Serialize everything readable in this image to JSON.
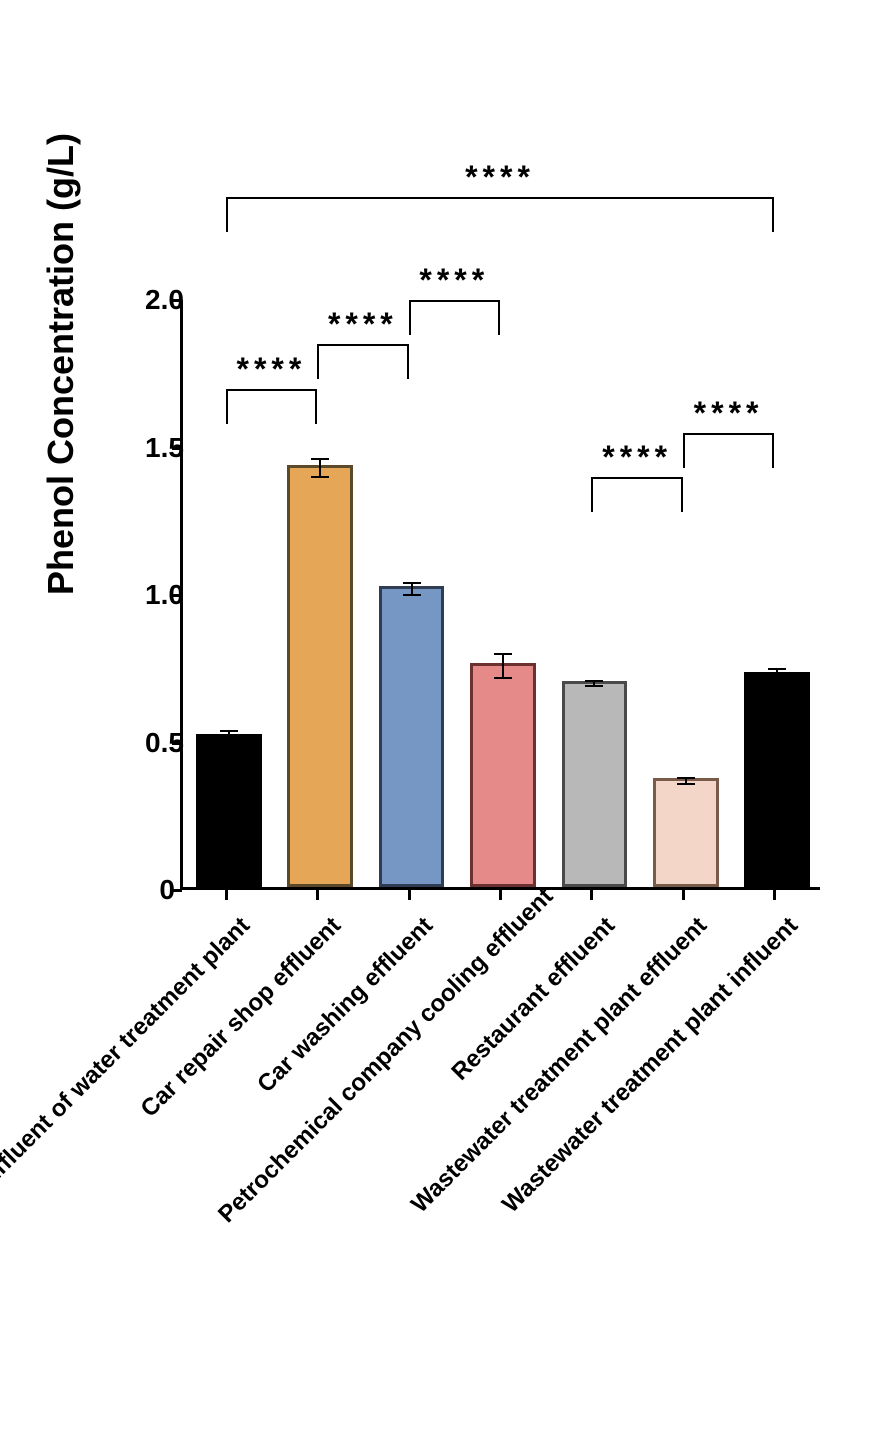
{
  "chart": {
    "type": "bar",
    "ylabel": "Phenol Concentration (g/L)",
    "ylabel_fontsize": 36,
    "ylim": [
      0,
      2.0
    ],
    "ytick_step": 0.5,
    "yticks": [
      "0",
      "0.5",
      "1.0",
      "1.5",
      "2.0"
    ],
    "tick_fontsize": 28,
    "xlabel_fontsize": 24,
    "background_color": "#ffffff",
    "axis_color": "#000000",
    "axis_width": 3,
    "bar_width_ratio": 0.72,
    "categories": [
      "Effluent of water treatment plant",
      "Car repair shop effluent",
      "Car washing effluent",
      "Petrochemical company cooling effluent",
      "Restaurant effluent",
      "Wastewater treatment plant effluent",
      "Wastewater treatment plant influent"
    ],
    "values": [
      0.52,
      1.43,
      1.02,
      0.76,
      0.7,
      0.37,
      0.73
    ],
    "errors": [
      0.02,
      0.03,
      0.02,
      0.04,
      0.01,
      0.01,
      0.02
    ],
    "bar_fill_colors": [
      "#000000",
      "#e6a657",
      "#7696c4",
      "#e58989",
      "#b8b8b8",
      "#f4d6c8",
      "#000000"
    ],
    "bar_border_colors": [
      "#000000",
      "#5a4a2a",
      "#2e3d52",
      "#6b3131",
      "#4a4a4a",
      "#7a5a48",
      "#000000"
    ],
    "bar_border_width": 3,
    "significance": [
      {
        "from": 0,
        "to": 1,
        "label": "****",
        "y_level": 1.7
      },
      {
        "from": 1,
        "to": 2,
        "label": "****",
        "y_level": 1.85
      },
      {
        "from": 2,
        "to": 3,
        "label": "****",
        "y_level": 2.0
      },
      {
        "from": 4,
        "to": 5,
        "label": "****",
        "y_level": 1.4
      },
      {
        "from": 5,
        "to": 6,
        "label": "****",
        "y_level": 1.55
      },
      {
        "from": 0,
        "to": 6,
        "label": "****",
        "y_level": 2.35
      }
    ],
    "sig_label_fontsize": 32,
    "sig_line_width": 2.5,
    "sig_drop_length": 35
  }
}
